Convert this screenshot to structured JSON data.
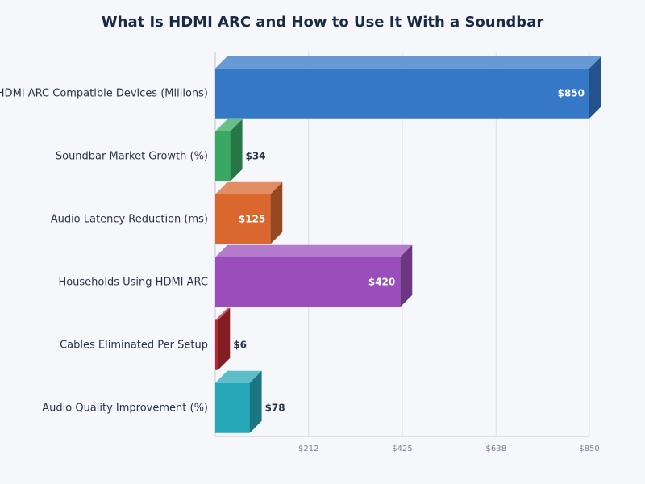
{
  "chart_data": {
    "type": "bar3d-horizontal",
    "title": "What Is HDMI ARC and How to Use It With a Soundbar",
    "categories": [
      "HDMI ARC Compatible Devices (Millions)",
      "Soundbar Market Growth (%)",
      "Audio Latency Reduction (ms)",
      "Households Using HDMI ARC",
      "Cables Eliminated Per Setup",
      "Audio Quality Improvement (%)"
    ],
    "values": [
      850,
      34,
      125,
      420,
      6,
      78
    ],
    "value_labels": [
      "$850",
      "$34",
      "$125",
      "$420",
      "$6",
      "$78"
    ],
    "colors": [
      "#3478c6",
      "#38a862",
      "#d9672e",
      "#9b4dbb",
      "#b82a32",
      "#27a8b8"
    ],
    "xlim": [
      0,
      850
    ],
    "xticks": [
      {
        "value": 212,
        "label": "$212"
      },
      {
        "value": 425,
        "label": "$425"
      },
      {
        "value": 638,
        "label": "$638"
      },
      {
        "value": 850,
        "label": "$850"
      }
    ],
    "grid": true
  }
}
